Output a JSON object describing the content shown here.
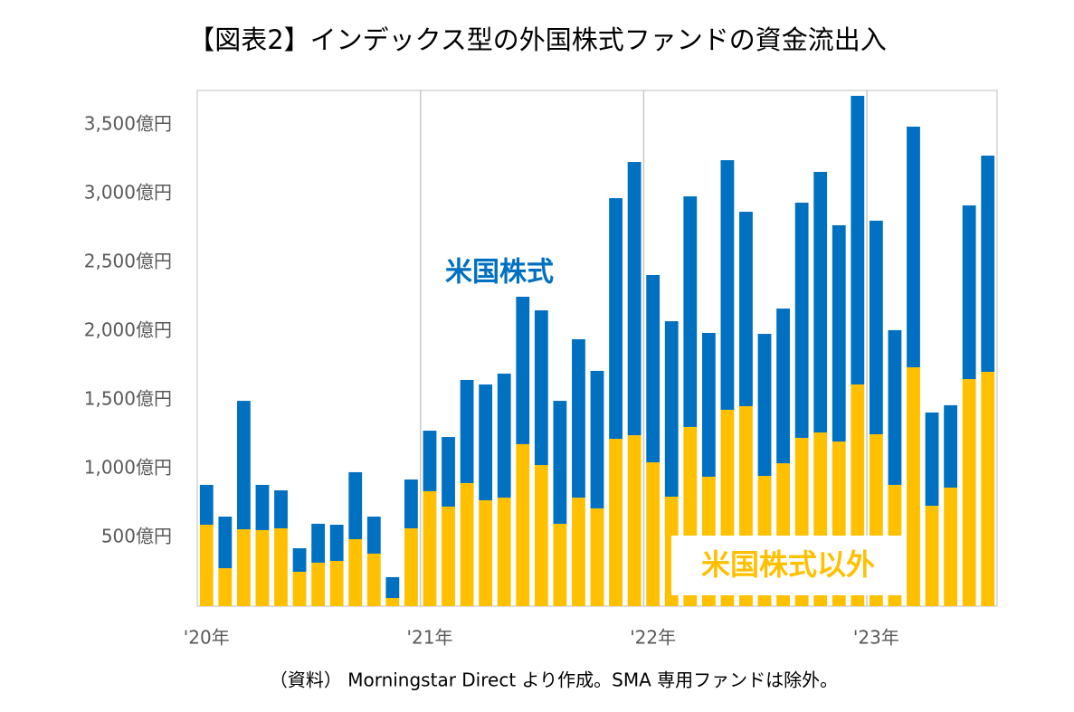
{
  "chart_data": {
    "type": "stacked-bar",
    "title": "【図表2】インデックス型の外国株式ファンドの資金流出入",
    "source": "（資料） Morningstar Direct より作成。SMA 専用ファンドは除外。",
    "categories": [
      "'20年",
      null,
      null,
      null,
      null,
      null,
      null,
      null,
      null,
      null,
      null,
      null,
      "'21年",
      null,
      null,
      null,
      null,
      null,
      null,
      null,
      null,
      null,
      null,
      null,
      "'22年",
      null,
      null,
      null,
      null,
      null,
      null,
      null,
      null,
      null,
      null,
      null,
      "'23年",
      null,
      null,
      null,
      null,
      null,
      null
    ],
    "series": [
      {
        "name": "米国株式以外",
        "color": "#ffc000",
        "values": [
          592,
          276,
          559,
          553,
          566,
          250,
          316,
          329,
          487,
          382,
          59,
          566,
          836,
          724,
          895,
          770,
          789,
          1178,
          1026,
          599,
          789,
          711,
          1217,
          1243,
          1046,
          796,
          1303,
          941,
          1428,
          1454,
          947,
          1039,
          1224,
          1263,
          1197,
          1612,
          1250,
          882,
          1737,
          730,
          862,
          1651,
          1704
        ]
      },
      {
        "name": "米国株式",
        "color": "#0070c0",
        "values": [
          290,
          375,
          934,
          329,
          276,
          171,
          283,
          263,
          487,
          269,
          152,
          355,
          440,
          506,
          750,
          842,
          902,
          1072,
          1125,
          894,
          1152,
          1000,
          1750,
          1987,
          1362,
          1276,
          1677,
          1046,
          1815,
          1414,
          1033,
          1125,
          1710,
          1895,
          1573,
          2099,
          1553,
          1125,
          1750,
          678,
          599,
          1263,
          1572
        ]
      }
    ],
    "ylim": [
      0,
      3750
    ],
    "yticks": [
      {
        "value": 500,
        "label": "500億円"
      },
      {
        "value": 1000,
        "label": "1,000億円"
      },
      {
        "value": 1500,
        "label": "1,500億円"
      },
      {
        "value": 2000,
        "label": "2,000億円"
      },
      {
        "value": 2500,
        "label": "2,500億円"
      },
      {
        "value": 3000,
        "label": "3,000億円"
      },
      {
        "value": 3500,
        "label": "3,500億円"
      }
    ],
    "grid": false
  }
}
